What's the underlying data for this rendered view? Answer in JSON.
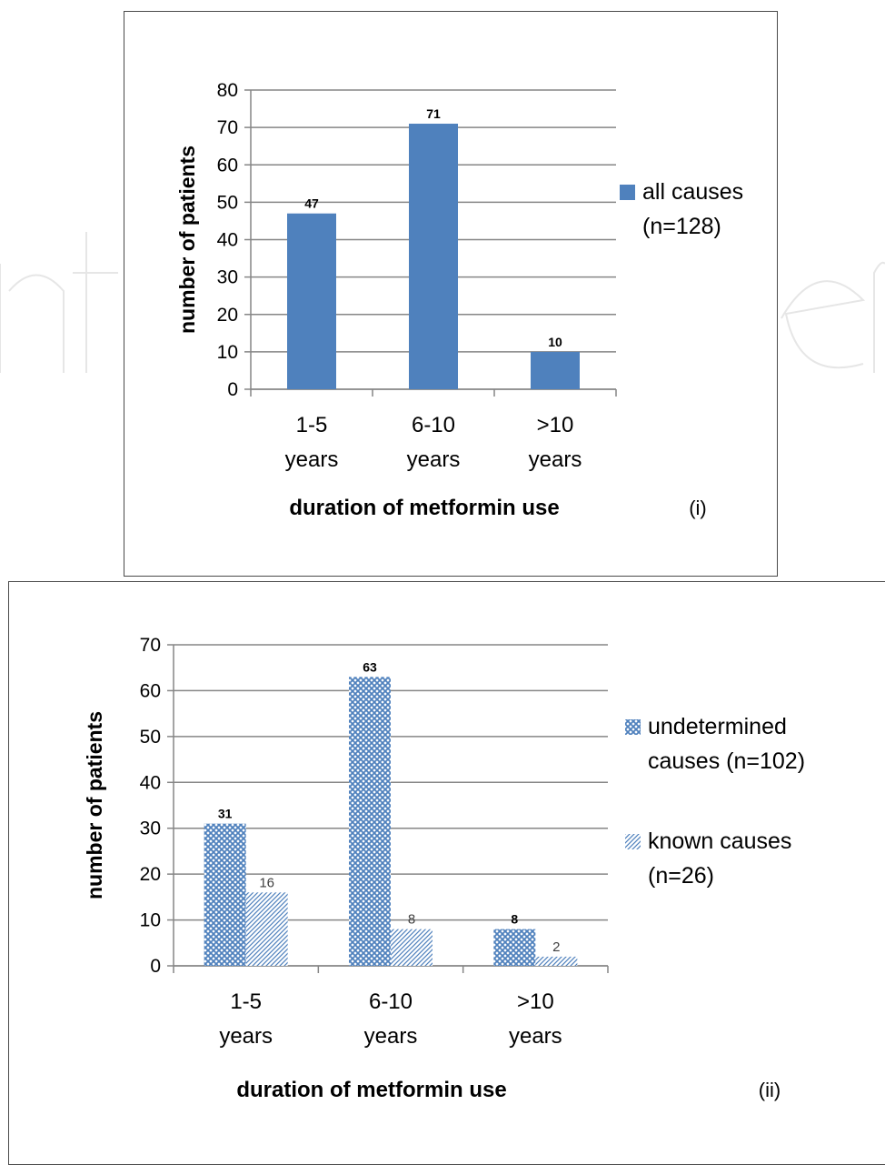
{
  "chart_data": [
    {
      "type": "bar",
      "panel_label": "(i)",
      "categories": [
        [
          "1-5",
          "years"
        ],
        [
          "6-10",
          "years"
        ],
        [
          ">10",
          "years"
        ]
      ],
      "series": [
        {
          "name": "all causes (n=128)",
          "legend_lines": [
            "all causes",
            "(n=128)"
          ],
          "values": [
            47,
            71,
            10
          ],
          "color": "#4f81bd",
          "pattern": "solid"
        }
      ],
      "xlabel": "duration of metformin use",
      "ylabel": "number of patients",
      "ylim": [
        0,
        80
      ],
      "yticks": [
        0,
        10,
        20,
        30,
        40,
        50,
        60,
        70,
        80
      ],
      "grid": true,
      "legend_position": "right"
    },
    {
      "type": "bar",
      "panel_label": "(ii)",
      "categories": [
        [
          "1-5",
          "years"
        ],
        [
          "6-10",
          "years"
        ],
        [
          ">10",
          "years"
        ]
      ],
      "series": [
        {
          "name": "undetermined causes (n=102)",
          "legend_lines": [
            "undetermined",
            "causes (n=102)"
          ],
          "values": [
            31,
            63,
            8
          ],
          "color": "#4f81bd",
          "pattern": "crosshatch"
        },
        {
          "name": "known causes (n=26)",
          "legend_lines": [
            "known causes",
            "(n=26)"
          ],
          "values": [
            16,
            8,
            2
          ],
          "color": "#4f81bd",
          "pattern": "diagonal"
        }
      ],
      "xlabel": "duration of metformin use",
      "ylabel": "number of patients",
      "ylim": [
        0,
        70
      ],
      "yticks": [
        0,
        10,
        20,
        30,
        40,
        50,
        60,
        70
      ],
      "grid": true,
      "legend_position": "right"
    }
  ]
}
